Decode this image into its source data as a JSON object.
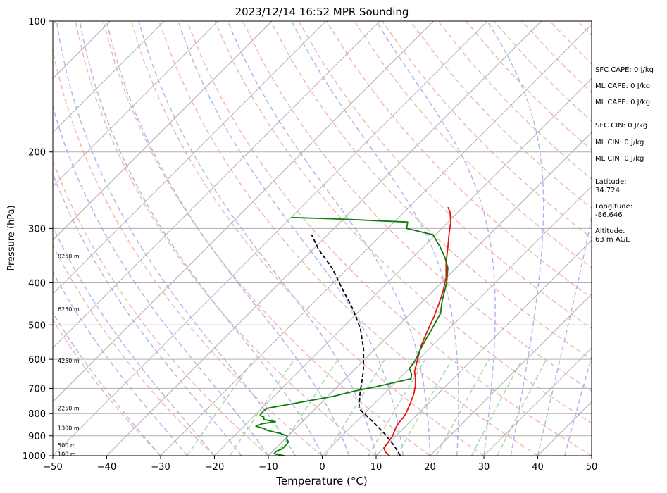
{
  "chart_data": {
    "type": "line",
    "title": "2023/12/14 16:52 MPR Sounding",
    "xlabel": "Temperature (°C)",
    "ylabel": "Pressure (hPa)",
    "xlim": [
      -50,
      50
    ],
    "ylim": [
      1000,
      100
    ],
    "y_scale": "log",
    "grid": true,
    "x_ticks": [
      -50,
      -40,
      -30,
      -20,
      -10,
      0,
      10,
      20,
      30,
      40,
      50
    ],
    "y_ticks": [
      1000,
      900,
      800,
      700,
      600,
      500,
      400,
      300,
      200,
      100
    ],
    "series": [
      {
        "role": "temperature",
        "color": "#e8120f",
        "points": [
          [
            12.5,
            1000
          ],
          [
            11.0,
            980
          ],
          [
            10.0,
            960
          ],
          [
            9.7,
            930
          ],
          [
            9.4,
            900
          ],
          [
            8.9,
            880
          ],
          [
            8.4,
            860
          ],
          [
            8.1,
            840
          ],
          [
            8.0,
            820
          ],
          [
            7.7,
            800
          ],
          [
            6.7,
            760
          ],
          [
            5.5,
            720
          ],
          [
            4.3,
            690
          ],
          [
            3.0,
            665
          ],
          [
            1.5,
            640
          ],
          [
            -0.2,
            600
          ],
          [
            -2.0,
            560
          ],
          [
            -3.5,
            520
          ],
          [
            -5.0,
            480
          ],
          [
            -6.4,
            450
          ],
          [
            -8.0,
            420
          ],
          [
            -10.0,
            390
          ],
          [
            -12.8,
            360
          ],
          [
            -15.5,
            330
          ],
          [
            -17.5,
            310
          ],
          [
            -19.5,
            290
          ],
          [
            -21.5,
            275
          ],
          [
            -22.8,
            268
          ]
        ]
      },
      {
        "role": "dewpoint",
        "color": "#0b7d0b",
        "points": [
          [
            -7.0,
            1000
          ],
          [
            -9.3,
            990
          ],
          [
            -9.3,
            975
          ],
          [
            -8.7,
            965
          ],
          [
            -8.7,
            950
          ],
          [
            -8.8,
            930
          ],
          [
            -9.7,
            915
          ],
          [
            -10.2,
            900
          ],
          [
            -12.0,
            888
          ],
          [
            -14.8,
            875
          ],
          [
            -16.0,
            865
          ],
          [
            -17.8,
            855
          ],
          [
            -17.2,
            845
          ],
          [
            -15.0,
            835
          ],
          [
            -17.5,
            826
          ],
          [
            -18.0,
            815
          ],
          [
            -19.0,
            808
          ],
          [
            -19.2,
            790
          ],
          [
            -19.0,
            778
          ],
          [
            -9.0,
            730
          ],
          [
            -6.0,
            710
          ],
          [
            -3.0,
            695
          ],
          [
            2.2,
            665
          ],
          [
            1.5,
            650
          ],
          [
            0.0,
            630
          ],
          [
            -0.5,
            600
          ],
          [
            -1.5,
            570
          ],
          [
            -2.5,
            535
          ],
          [
            -3.5,
            500
          ],
          [
            -4.5,
            470
          ],
          [
            -6.5,
            440
          ],
          [
            -9.0,
            400
          ],
          [
            -11.5,
            370
          ],
          [
            -14.0,
            350
          ],
          [
            -17.0,
            330
          ],
          [
            -20.5,
            310
          ],
          [
            -26.5,
            300
          ],
          [
            -27.5,
            290
          ],
          [
            -42.0,
            285
          ],
          [
            -50.0,
            283
          ]
        ]
      },
      {
        "role": "parcel",
        "color": "#000000",
        "points": [
          [
            14.5,
            1000
          ],
          [
            11.6,
            950
          ],
          [
            7.5,
            890
          ],
          [
            3.5,
            840
          ],
          [
            0.0,
            800
          ],
          [
            -1.9,
            780
          ],
          [
            -4.5,
            720
          ],
          [
            -8.0,
            640
          ],
          [
            -12.0,
            570
          ],
          [
            -16.5,
            510
          ],
          [
            -21.5,
            460
          ],
          [
            -27.0,
            415
          ],
          [
            -33.0,
            370
          ],
          [
            -39.0,
            335
          ],
          [
            -43.0,
            310
          ]
        ]
      }
    ],
    "height_labels": [
      {
        "text": "100 m",
        "p": 990
      },
      {
        "text": "500 m",
        "p": 945
      },
      {
        "text": "1300 m",
        "p": 863
      },
      {
        "text": "2250 m",
        "p": 778
      },
      {
        "text": "4250 m",
        "p": 604
      },
      {
        "text": "6250 m",
        "p": 460
      },
      {
        "text": "8250 m",
        "p": 347
      }
    ],
    "side_info": [
      "SFC CAPE: 0 J/kg",
      "ML CAPE: 0 J/kg",
      "ML CAPE: 0 J/kg",
      "SFC CIN: 0 J/kg",
      "ML CIN: 0 J/kg",
      "ML CIN: 0 J/kg",
      "Latitude:\n34.724",
      "Longitude:\n-86.646",
      "Altitude:\n63 m AGL"
    ],
    "reference_lines": {
      "isotherm_color": "#b0b0b0",
      "dry_adiabat_color": "#f8b4b4",
      "moist_adiabat_color": "#b4b4f4",
      "mixing_ratio_color": "#a8d8a8"
    }
  }
}
